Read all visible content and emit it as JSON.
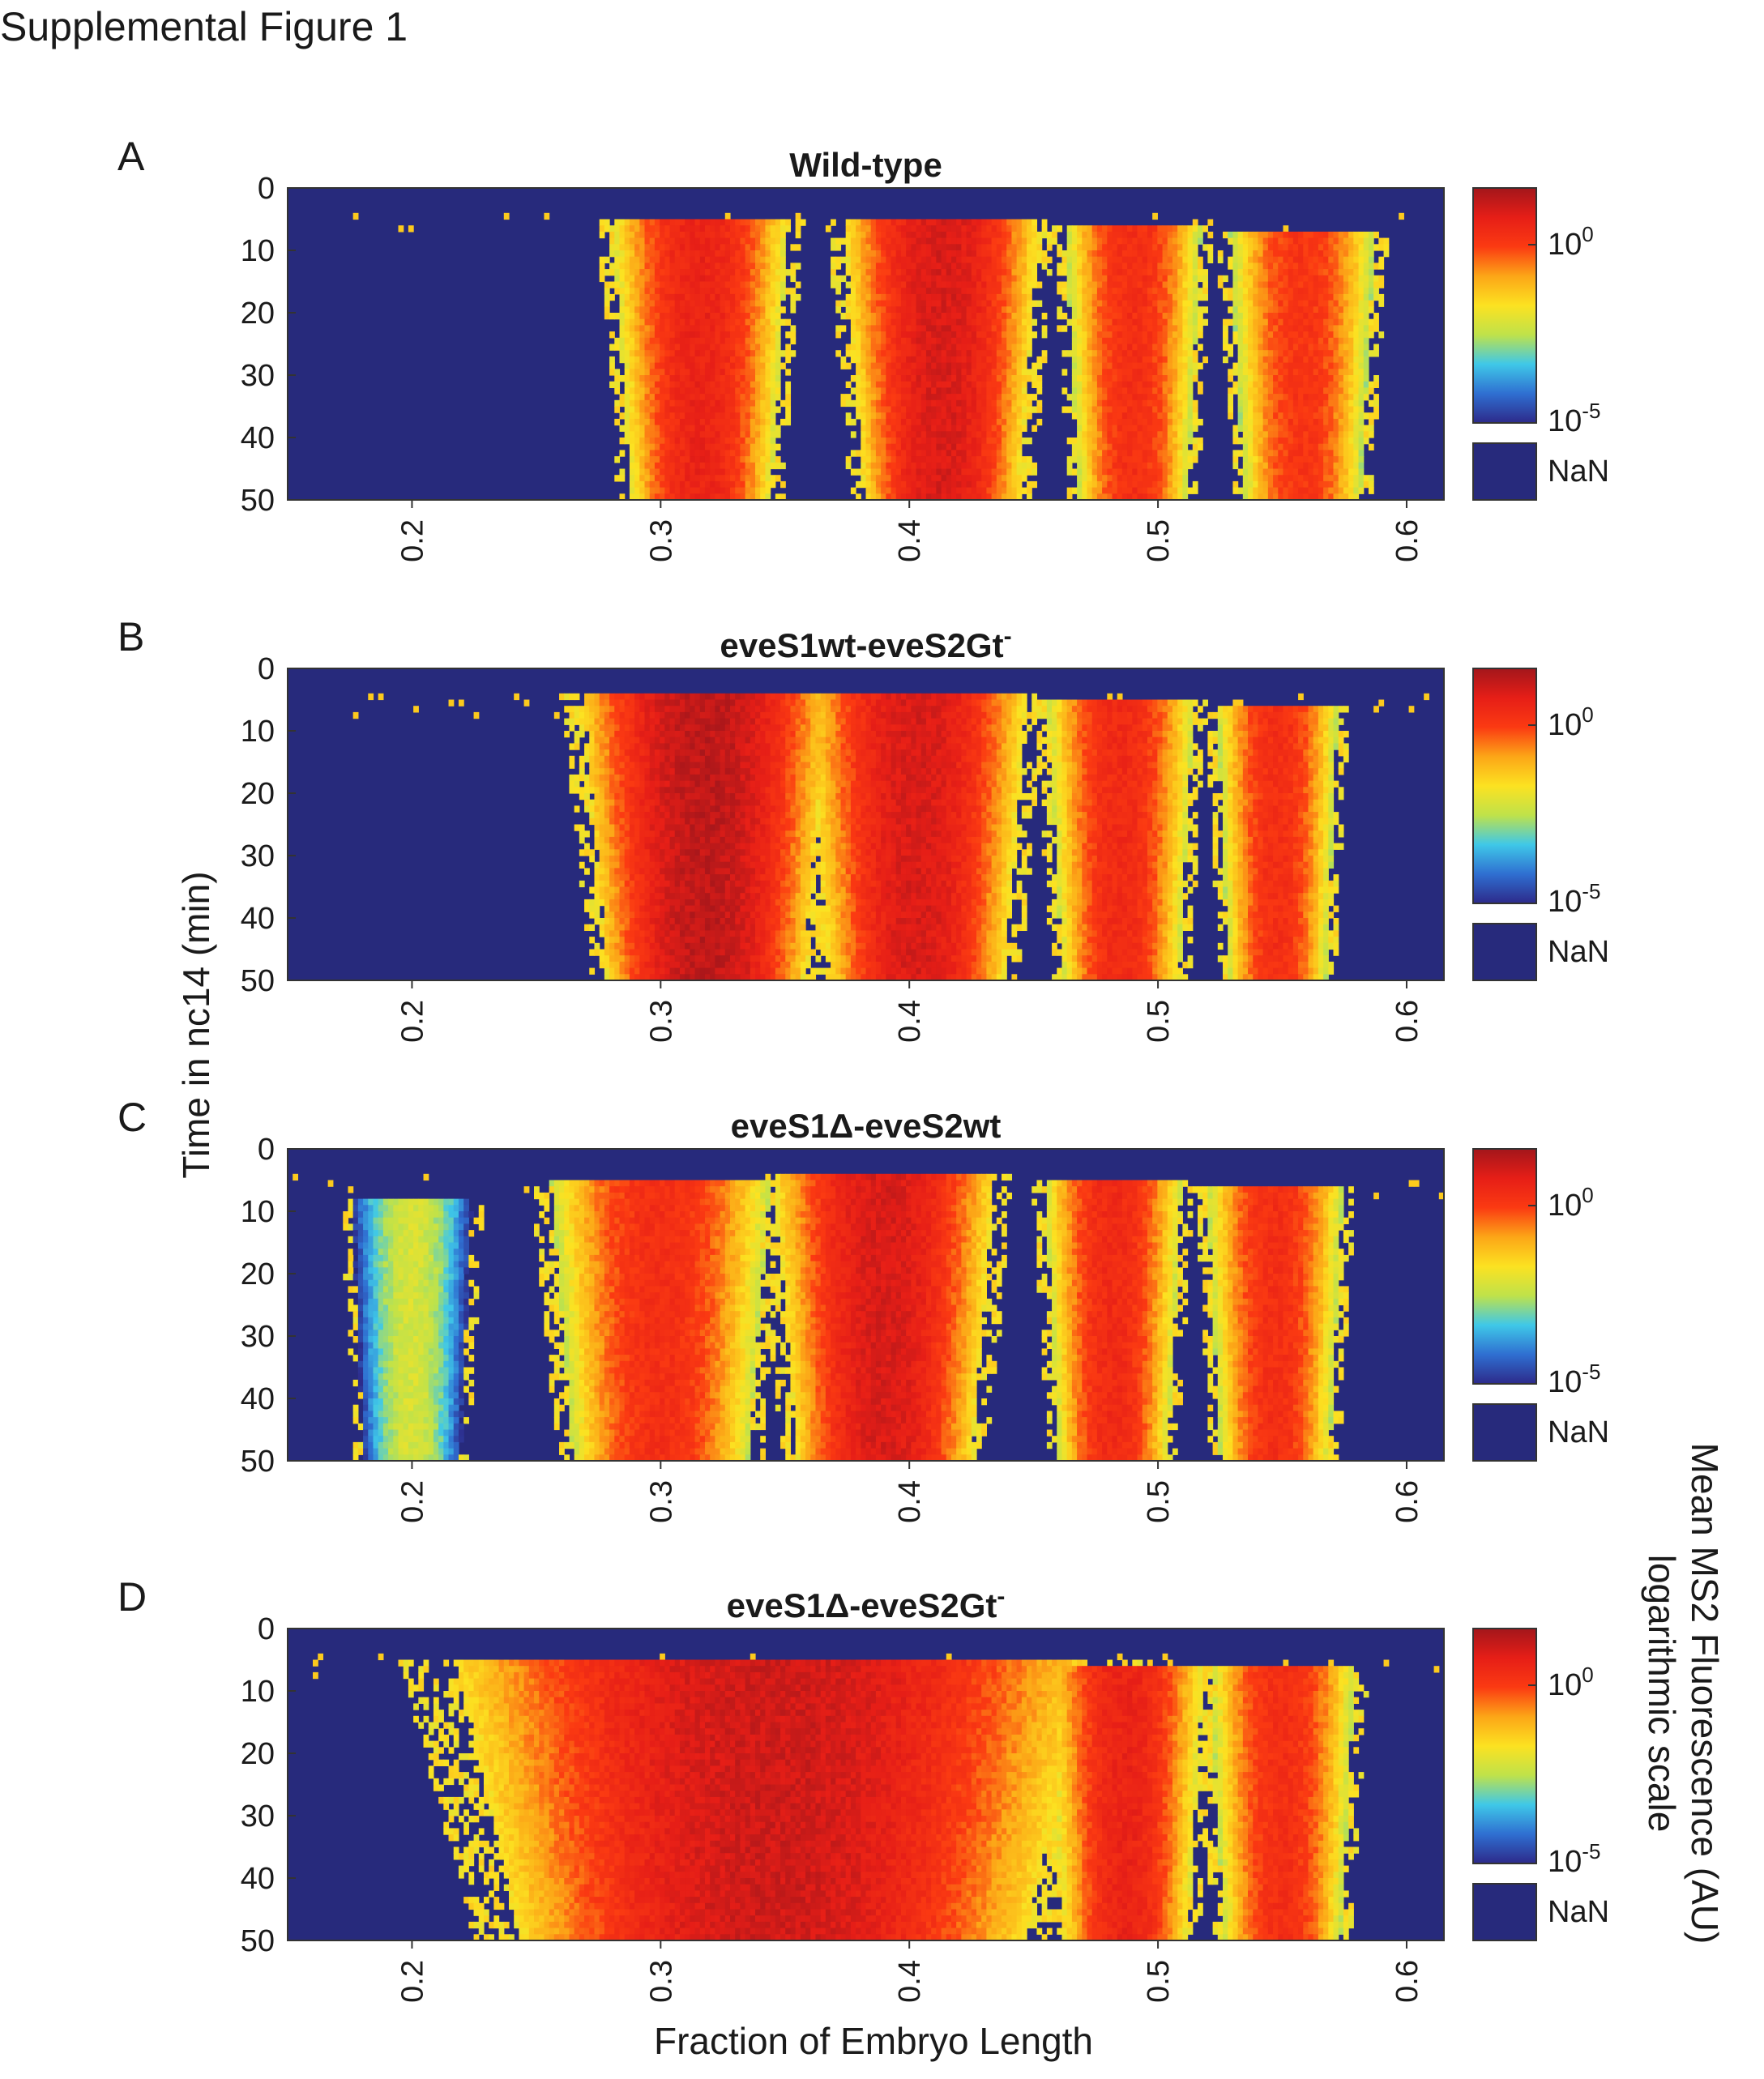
{
  "figure": {
    "title": "Supplemental Figure 1",
    "xlabel": "Fraction of Embryo Length",
    "ylabel": "Time in nc14 (min)",
    "colorbar_label_line1": "Mean MS2 Fluorescence (AU)",
    "colorbar_label_line2": "logarithmic scale"
  },
  "colors": {
    "nan": "#272a7c",
    "colormap": [
      "#2d2a8a",
      "#2f6fd1",
      "#3fc8e8",
      "#bfe24a",
      "#fce221",
      "#fca617",
      "#fb3a12",
      "#e61e17",
      "#a3161b"
    ]
  },
  "chart_data": [
    {
      "type": "heatmap",
      "panel": "A",
      "title": "Wild-type",
      "x_range": [
        0.15,
        0.615
      ],
      "y_range": [
        0,
        50
      ],
      "y_reversed": true,
      "xticks": [
        "0.2",
        "0.3",
        "0.4",
        "0.5",
        "0.6"
      ],
      "yticks": [
        "0",
        "10",
        "20",
        "30",
        "40",
        "50"
      ],
      "colorbar": {
        "scale": "log",
        "ticks": [
          "10",
          "10"
        ],
        "exponents": [
          "0",
          "-5"
        ],
        "nan_label": "NaN"
      },
      "stripes": [
        {
          "center": 0.316,
          "half_width": 0.036,
          "t_start": 5,
          "peak": 0.85
        },
        {
          "center": 0.413,
          "half_width": 0.04,
          "t_start": 5,
          "peak": 0.9
        },
        {
          "center": 0.49,
          "half_width": 0.028,
          "t_start": 6,
          "peak": 0.8
        },
        {
          "center": 0.558,
          "half_width": 0.03,
          "t_start": 7,
          "peak": 0.78
        }
      ]
    },
    {
      "type": "heatmap",
      "panel": "B",
      "title": "eveS1wt-eveS2Gt",
      "title_sup": "-",
      "x_range": [
        0.15,
        0.615
      ],
      "y_range": [
        0,
        50
      ],
      "y_reversed": true,
      "xticks": [
        "0.2",
        "0.3",
        "0.4",
        "0.5",
        "0.6"
      ],
      "yticks": [
        "0",
        "10",
        "20",
        "30",
        "40",
        "50"
      ],
      "colorbar": {
        "scale": "log",
        "ticks": [
          "10",
          "10"
        ],
        "exponents": [
          "0",
          "-5"
        ],
        "nan_label": "NaN"
      },
      "stripes": [
        {
          "center": 0.318,
          "half_width": 0.05,
          "t_start": 4,
          "peak": 0.95
        },
        {
          "center": 0.403,
          "half_width": 0.045,
          "t_start": 4,
          "peak": 0.9
        },
        {
          "center": 0.485,
          "half_width": 0.03,
          "t_start": 5,
          "peak": 0.82
        },
        {
          "center": 0.548,
          "half_width": 0.025,
          "t_start": 6,
          "peak": 0.8
        }
      ]
    },
    {
      "type": "heatmap",
      "panel": "C",
      "title": "eveS1Δ-eveS2wt",
      "x_range": [
        0.15,
        0.615
      ],
      "y_range": [
        0,
        50
      ],
      "y_reversed": true,
      "xticks": [
        "0.2",
        "0.3",
        "0.4",
        "0.5",
        "0.6"
      ],
      "yticks": [
        "0",
        "10",
        "20",
        "30",
        "40",
        "50"
      ],
      "colorbar": {
        "scale": "log",
        "ticks": [
          "10",
          "10"
        ],
        "exponents": [
          "0",
          "-5"
        ],
        "nan_label": "NaN"
      },
      "stripes": [
        {
          "center": 0.3,
          "half_width": 0.045,
          "t_start": 5,
          "peak": 0.8
        },
        {
          "center": 0.39,
          "half_width": 0.045,
          "t_start": 4,
          "peak": 0.9
        },
        {
          "center": 0.482,
          "half_width": 0.028,
          "t_start": 5,
          "peak": 0.82
        },
        {
          "center": 0.547,
          "half_width": 0.028,
          "t_start": 6,
          "peak": 0.8
        },
        {
          "center": 0.2,
          "half_width": 0.025,
          "t_start": 8,
          "peak": 0.42
        }
      ]
    },
    {
      "type": "heatmap",
      "panel": "D",
      "title": "eveS1Δ-eveS2Gt",
      "title_sup": "-",
      "x_range": [
        0.15,
        0.615
      ],
      "y_range": [
        0,
        50
      ],
      "y_reversed": true,
      "xticks": [
        "0.2",
        "0.3",
        "0.4",
        "0.5",
        "0.6"
      ],
      "yticks": [
        "0",
        "10",
        "20",
        "30",
        "40",
        "50"
      ],
      "colorbar": {
        "scale": "log",
        "ticks": [
          "10",
          "10"
        ],
        "exponents": [
          "0",
          "-5"
        ],
        "nan_label": "NaN"
      },
      "stripes": [
        {
          "center": 0.345,
          "half_width": 0.13,
          "t_start": 5,
          "peak": 0.92
        },
        {
          "center": 0.487,
          "half_width": 0.032,
          "t_start": 6,
          "peak": 0.85
        },
        {
          "center": 0.55,
          "half_width": 0.03,
          "t_start": 6,
          "peak": 0.8
        }
      ]
    }
  ]
}
